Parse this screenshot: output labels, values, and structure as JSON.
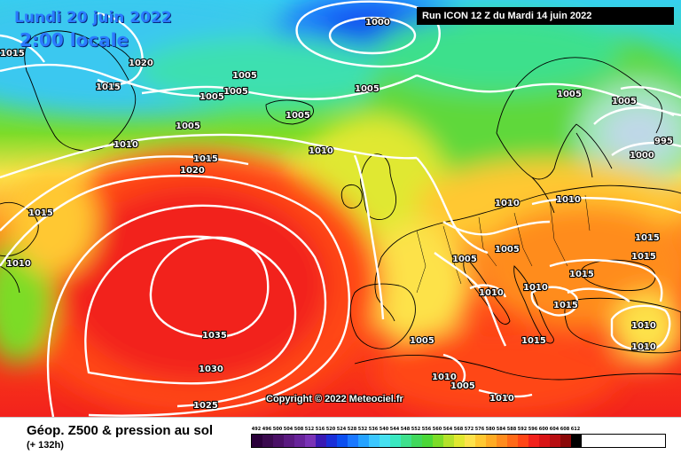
{
  "header": {
    "date_line": "Lundi 20 juin 2022",
    "time_line": "2:00 locale",
    "run_info": "Run ICON 12 Z du Mardi 14 juin 2022",
    "copyright": "Copyright © 2022 Meteociel.fr"
  },
  "legend": {
    "title": "Géop. Z500 & pression au sol",
    "subtitle": "(+ 132h)",
    "scale": [
      {
        "value": "492",
        "color": "#2a003a"
      },
      {
        "value": "496",
        "color": "#3a0a4e"
      },
      {
        "value": "500",
        "color": "#4a1066"
      },
      {
        "value": "504",
        "color": "#5a1a80"
      },
      {
        "value": "508",
        "color": "#68249a"
      },
      {
        "value": "512",
        "color": "#7a33b6"
      },
      {
        "value": "516",
        "color": "#3a1ab4"
      },
      {
        "value": "520",
        "color": "#1b2fd8"
      },
      {
        "value": "524",
        "color": "#0c4ff0"
      },
      {
        "value": "528",
        "color": "#1a78ff"
      },
      {
        "value": "532",
        "color": "#25a2ff"
      },
      {
        "value": "536",
        "color": "#3cc7ff"
      },
      {
        "value": "540",
        "color": "#46e0f0"
      },
      {
        "value": "544",
        "color": "#3ae8c0"
      },
      {
        "value": "548",
        "color": "#3ee08c"
      },
      {
        "value": "552",
        "color": "#41d85c"
      },
      {
        "value": "556",
        "color": "#4bd838"
      },
      {
        "value": "560",
        "color": "#7cdc28"
      },
      {
        "value": "564",
        "color": "#b4e22a"
      },
      {
        "value": "568",
        "color": "#e0e830"
      },
      {
        "value": "572",
        "color": "#fde24a"
      },
      {
        "value": "576",
        "color": "#ffc831"
      },
      {
        "value": "580",
        "color": "#ffab24"
      },
      {
        "value": "584",
        "color": "#ff8c1e"
      },
      {
        "value": "588",
        "color": "#ff6a18"
      },
      {
        "value": "592",
        "color": "#ff4616"
      },
      {
        "value": "596",
        "color": "#f2221c"
      },
      {
        "value": "600",
        "color": "#d81416"
      },
      {
        "value": "604",
        "color": "#b80e12"
      },
      {
        "value": "608",
        "color": "#8a0808"
      },
      {
        "value": "612",
        "color": "#000000"
      }
    ]
  },
  "isobar_labels": [
    "1000",
    "1015",
    "1020",
    "1015",
    "1005",
    "1005",
    "1005",
    "1005",
    "1005",
    "1005",
    "1010",
    "1015",
    "1020",
    "1015",
    "1010",
    "1035",
    "1030",
    "1025",
    "1010",
    "1005",
    "1005",
    "995",
    "1000",
    "1010",
    "1010",
    "1005",
    "1015",
    "1005",
    "1015",
    "1010",
    "1015",
    "1010",
    "1005",
    "1015",
    "1015",
    "1010",
    "1010",
    "1010",
    "1005",
    "1010"
  ],
  "colors": {
    "isobar": "#ffffff",
    "coast": "#000000"
  }
}
